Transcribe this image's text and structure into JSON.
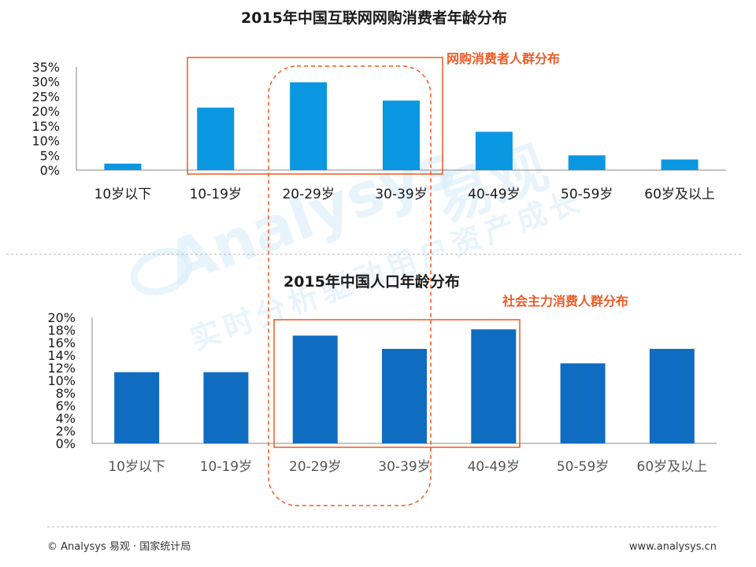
{
  "colors": {
    "bar_top": "#0a97e1",
    "bar_bottom": "#0f6cc0",
    "highlight": "#ee5a24",
    "axis": "#888888"
  },
  "watermark": {
    "brand": "Analysys",
    "brand_cn": "易观",
    "slogan": "实时分析驱动用户资产成长"
  },
  "annotations": {
    "top_box_label": "网购消费者人群分布",
    "bottom_box_label": "社会主力消费人群分布"
  },
  "footer": {
    "source": "© Analysys 易观 · 国家统计局",
    "url": "www.analysys.cn"
  },
  "chart_data": [
    {
      "type": "bar",
      "title": "2015年中国互联网网购消费者年龄分布",
      "categories": [
        "10岁以下",
        "10-19岁",
        "20-29岁",
        "30-39岁",
        "40-49岁",
        "50-59岁",
        "60岁及以上"
      ],
      "values": [
        2.2,
        21.2,
        29.8,
        23.6,
        13.0,
        5.0,
        3.6
      ],
      "ylim": [
        0,
        35
      ],
      "yticks": [
        "0%",
        "5%",
        "10%",
        "15%",
        "20%",
        "25%",
        "30%",
        "35%"
      ],
      "grid": false
    },
    {
      "type": "bar",
      "title": "2015年中国人口年龄分布",
      "categories": [
        "10岁以下",
        "10-19岁",
        "20-29岁",
        "30-39岁",
        "40-49岁",
        "50-59岁",
        "60岁及以上"
      ],
      "values": [
        11.3,
        11.3,
        17.1,
        15.0,
        18.1,
        12.7,
        15.0
      ],
      "ylim": [
        0,
        20
      ],
      "yticks": [
        "0%",
        "2%",
        "4%",
        "6%",
        "8%",
        "10%",
        "12%",
        "14%",
        "16%",
        "18%",
        "20%"
      ],
      "grid": false
    }
  ]
}
